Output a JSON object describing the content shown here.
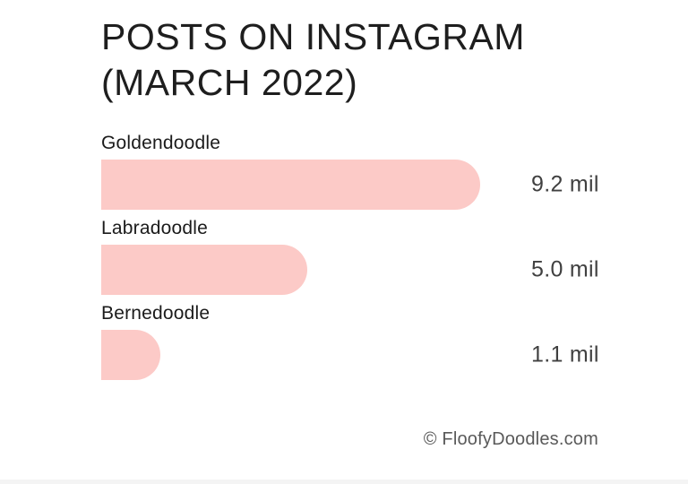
{
  "page": {
    "background_color": "#ffffff",
    "bottom_strip_color": "#f4f4f4"
  },
  "header": {
    "title_line1": "POSTS ON INSTAGRAM",
    "title_line2": "(MARCH 2022)"
  },
  "chart_data": {
    "type": "bar",
    "orientation": "horizontal",
    "title": "POSTS ON INSTAGRAM (MARCH 2022)",
    "categories": [
      "Goldendoodle",
      "Labradoodle",
      "Bernedoodle"
    ],
    "values": [
      9.2,
      5.0,
      1.1
    ],
    "value_labels": [
      "9.2 mil",
      "5.0 mil",
      "1.1 mil"
    ],
    "unit": "mil",
    "xlim": [
      0,
      9.2
    ],
    "bar_color": "#fccac7",
    "label_color": "#1b1b1b",
    "value_color": "#404040",
    "grid": false,
    "legend": false
  },
  "footer": {
    "credit": "© FloofyDoodles.com"
  }
}
